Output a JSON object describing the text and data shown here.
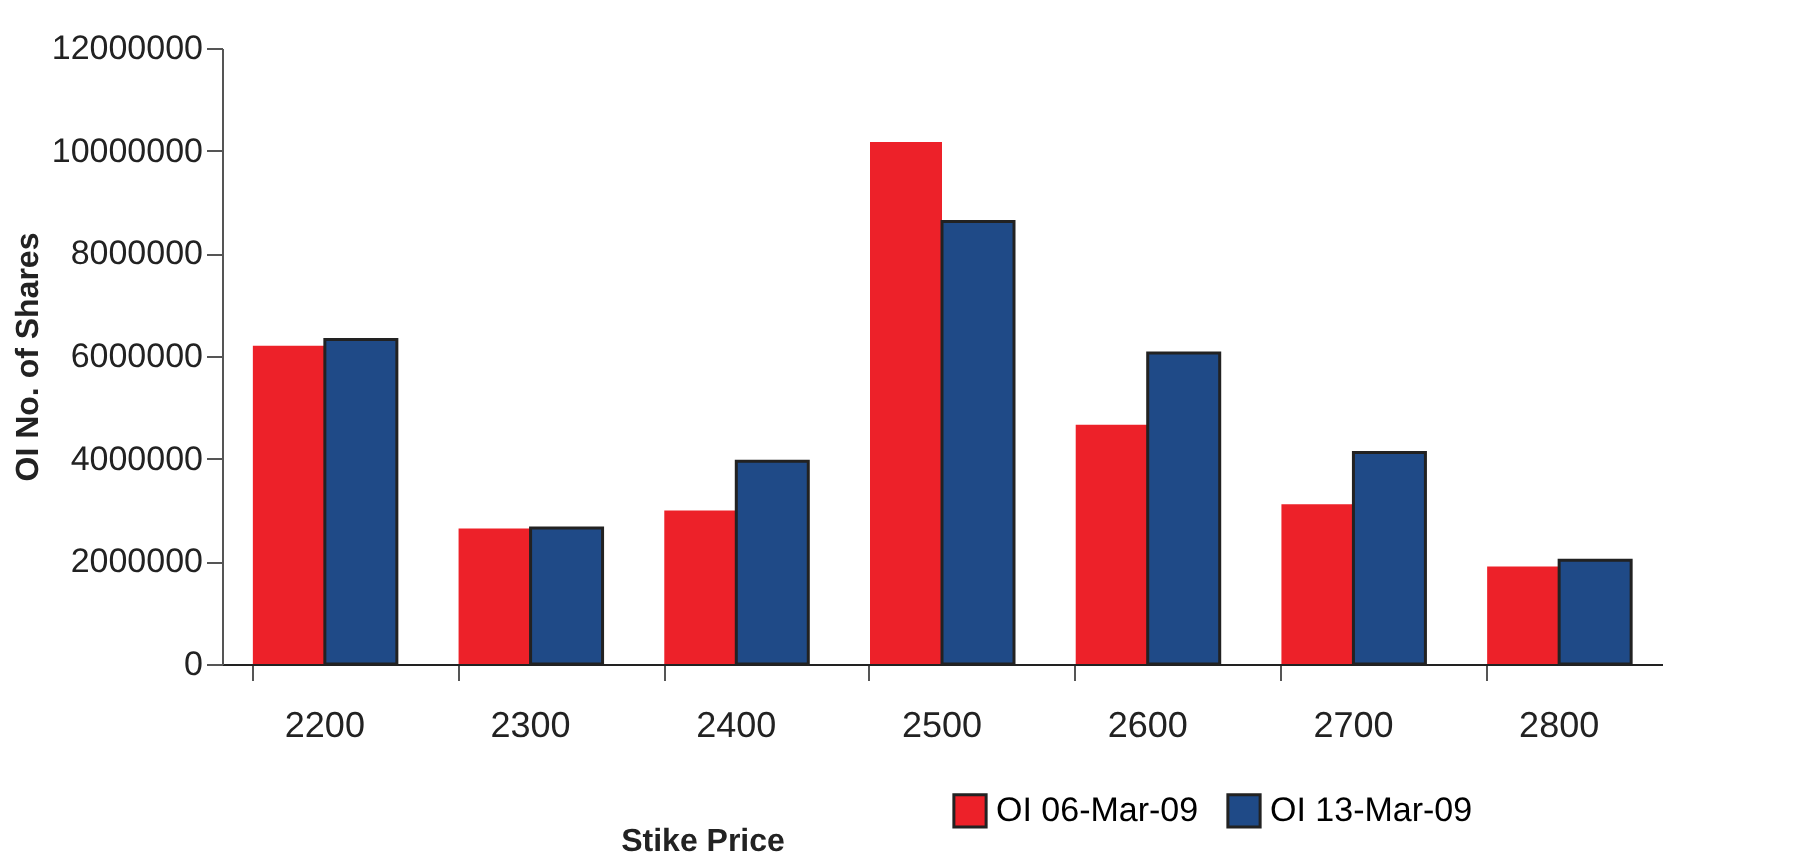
{
  "chart_data": {
    "type": "bar",
    "xlabel": "Stike Price",
    "ylabel": "OI No. of Shares",
    "categories": [
      "2200",
      "2300",
      "2400",
      "2500",
      "2600",
      "2700",
      "2800"
    ],
    "series": [
      {
        "name": "OI 06-Mar-09",
        "color": "#ed2129",
        "values": [
          6200000,
          2640000,
          2990000,
          10170000,
          4660000,
          3110000,
          1900000
        ]
      },
      {
        "name": "OI 13-Mar-09",
        "color": "#1f4a87",
        "values": [
          6320000,
          2650000,
          3950000,
          8620000,
          6060000,
          4120000,
          2020000
        ]
      }
    ],
    "ylim": [
      0,
      12000000
    ],
    "yticks": [
      0,
      2000000,
      4000000,
      6000000,
      8000000,
      10000000,
      12000000
    ],
    "grid": false,
    "legend": "bottom right"
  }
}
